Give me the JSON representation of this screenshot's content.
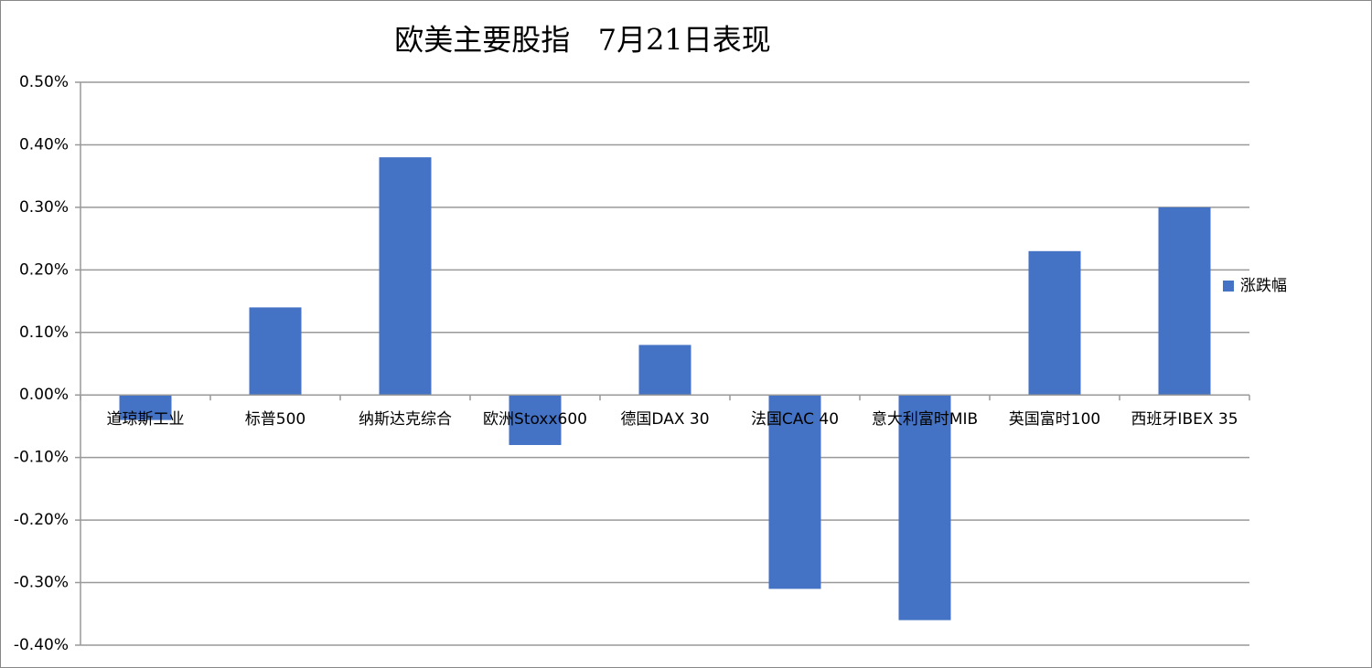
{
  "chart_data": {
    "type": "bar",
    "title": "欧美主要股指   7月21日表现",
    "categories": [
      "道琼斯工业",
      "标普500",
      "纳斯达克综合",
      "欧洲Stoxx600",
      "德国DAX 30",
      "法国CAC 40",
      "意大利富时MIB",
      "英国富时100",
      "西班牙IBEX 35"
    ],
    "series": [
      {
        "name": "涨跌幅",
        "color": "#4472c4",
        "values": [
          -0.04,
          0.14,
          0.38,
          -0.08,
          0.08,
          -0.31,
          -0.36,
          0.23,
          0.3
        ]
      }
    ],
    "ylim": [
      -0.4,
      0.5
    ],
    "yticks": [
      {
        "value": -0.4,
        "label": "-0.40%"
      },
      {
        "value": -0.3,
        "label": "-0.30%"
      },
      {
        "value": -0.2,
        "label": "-0.20%"
      },
      {
        "value": -0.1,
        "label": "-0.10%"
      },
      {
        "value": 0,
        "label": "0.00%"
      },
      {
        "value": 0.1,
        "label": "0.10%"
      },
      {
        "value": 0.2,
        "label": "0.20%"
      },
      {
        "value": 0.3,
        "label": "0.30%"
      },
      {
        "value": 0.4,
        "label": "0.40%"
      },
      {
        "value": 0.5,
        "label": "0.50%"
      }
    ],
    "grid": true,
    "legend": "right"
  }
}
